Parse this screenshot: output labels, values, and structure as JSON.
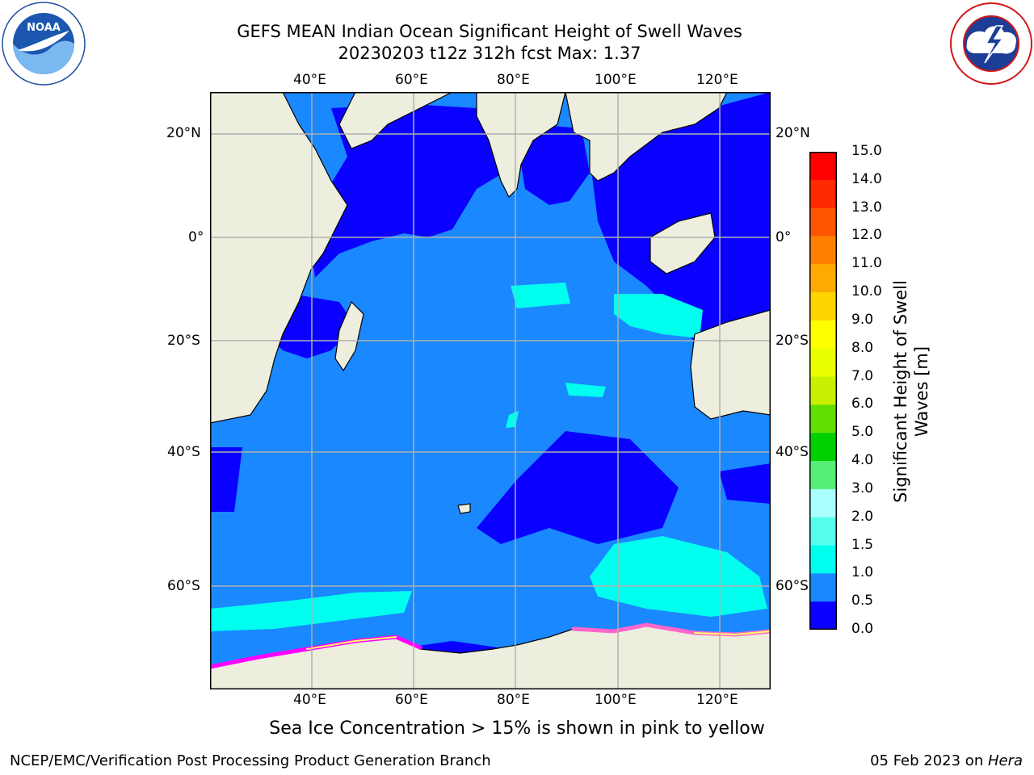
{
  "title": {
    "line1": "GEFS MEAN Indian Ocean Significant Height of Swell Waves",
    "line2": "20230203 t12z 312h fcst   Max: 1.37"
  },
  "logos": {
    "left": {
      "name": "NOAA",
      "ring_text": "NATIONAL OCEANIC AND ATMOSPHERIC ADMINISTRATION · U.S. DEPARTMENT OF COMMERCE",
      "icon": "noaa-logo"
    },
    "right": {
      "ring_text": "NATIONAL WEATHER SERVICE",
      "icon": "nws-logo"
    }
  },
  "map": {
    "lon_ticks_top": [
      "40°E",
      "60°E",
      "80°E",
      "100°E",
      "120°E"
    ],
    "lon_ticks_bottom": [
      "40°E",
      "60°E",
      "80°E",
      "100°E",
      "120°E"
    ],
    "lat_ticks_left": [
      "20°N",
      "0°",
      "20°S",
      "40°S",
      "60°S"
    ],
    "lat_ticks_right": [
      "20°N",
      "0°",
      "20°S",
      "40°S",
      "60°S"
    ],
    "colors": {
      "land": "#eeeedf",
      "coast": "#000000",
      "grid": "#b0b0b0",
      "sea_ice": [
        "#ff00ff",
        "#ff66cc",
        "#ffff66"
      ]
    }
  },
  "colorbar": {
    "labels": [
      "15.0",
      "14.0",
      "13.0",
      "12.0",
      "11.0",
      "10.0",
      "9.0",
      "8.0",
      "7.0",
      "6.0",
      "5.0",
      "4.0",
      "3.0",
      "2.0",
      "1.5",
      "1.0",
      "0.5",
      "0.0"
    ],
    "bins": [
      {
        "range": "14.0-15.0",
        "color": "#ff0000"
      },
      {
        "range": "13.0-14.0",
        "color": "#ff2a00"
      },
      {
        "range": "12.0-13.0",
        "color": "#ff5500"
      },
      {
        "range": "11.0-12.0",
        "color": "#ff8000"
      },
      {
        "range": "10.0-11.0",
        "color": "#ffaa00"
      },
      {
        "range": "9.0-10.0",
        "color": "#ffd500"
      },
      {
        "range": "8.0-9.0",
        "color": "#ffff00"
      },
      {
        "range": "7.0-8.0",
        "color": "#eaff00"
      },
      {
        "range": "6.0-7.0",
        "color": "#c8f000"
      },
      {
        "range": "5.0-6.0",
        "color": "#60e000"
      },
      {
        "range": "4.0-5.0",
        "color": "#00d000"
      },
      {
        "range": "3.0-4.0",
        "color": "#55ee77"
      },
      {
        "range": "2.0-3.0",
        "color": "#aaffff"
      },
      {
        "range": "1.5-2.0",
        "color": "#55ffee"
      },
      {
        "range": "1.0-1.5",
        "color": "#00ffee"
      },
      {
        "range": "0.5-1.0",
        "color": "#1a88ff"
      },
      {
        "range": "0.0-0.5",
        "color": "#0a00ff"
      }
    ],
    "title_line1": "Significant Height of Swell",
    "title_line2": "Waves [m]"
  },
  "caption": "Sea Ice Concentration > 15% is shown in pink to yellow",
  "footer": {
    "left": "NCEP/EMC/Verification Post Processing Product Generation Branch",
    "date": "05 Feb 2023 on ",
    "machine": "Hera"
  }
}
